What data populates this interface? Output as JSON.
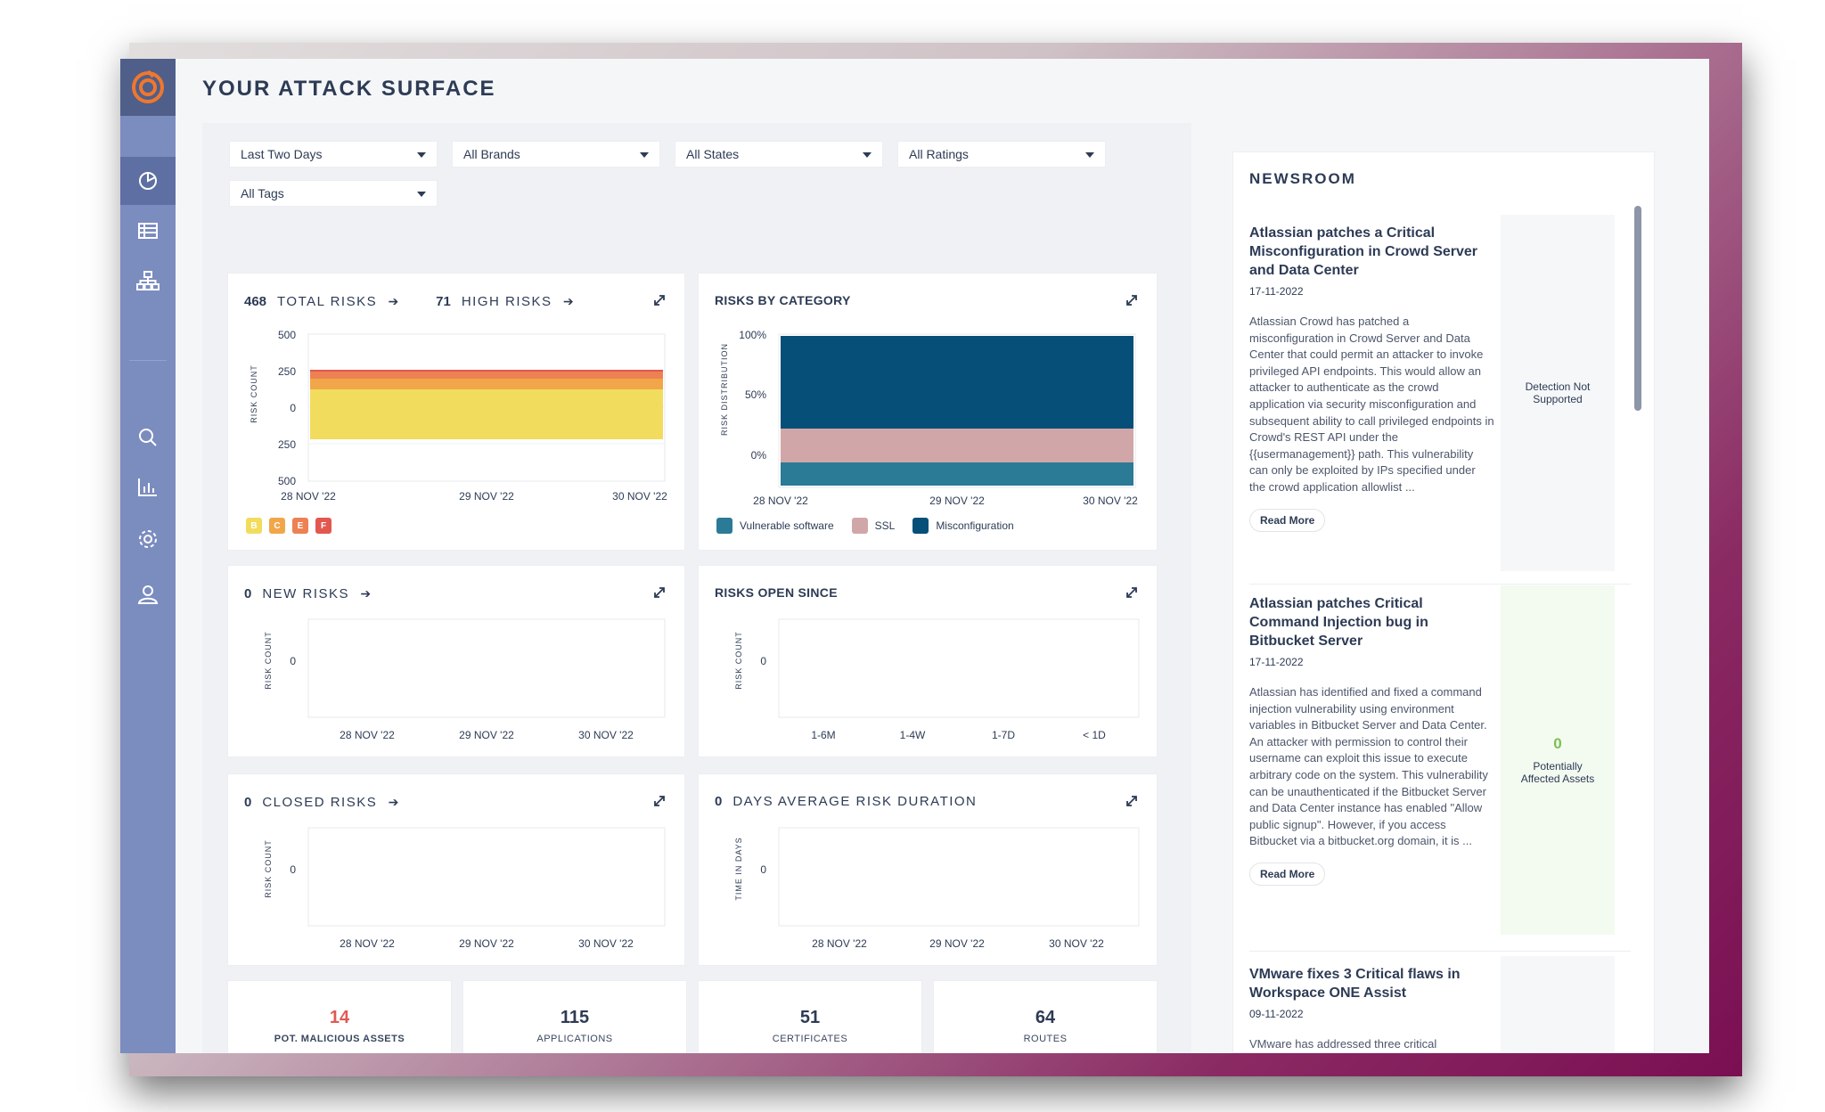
{
  "page": {
    "title": "YOUR ATTACK SURFACE"
  },
  "sidebar": {
    "items": [
      {
        "name": "dashboard",
        "icon": "pie-chart-icon",
        "active": true
      },
      {
        "name": "assets",
        "icon": "table-icon"
      },
      {
        "name": "hierarchy",
        "icon": "sitemap-icon"
      },
      {
        "name": "search",
        "icon": "search-icon"
      },
      {
        "name": "reports",
        "icon": "bar-chart-icon"
      },
      {
        "name": "settings",
        "icon": "gear-icon"
      },
      {
        "name": "account",
        "icon": "user-icon"
      }
    ]
  },
  "filters": {
    "period": "Last Two Days",
    "brands": "All Brands",
    "states": "All States",
    "ratings": "All Ratings",
    "tags": "All Tags"
  },
  "risks_card": {
    "total_count": "468",
    "total_label": "TOTAL RISKS",
    "high_count": "71",
    "high_label": "HIGH RISKS",
    "ylabel": "RISK COUNT",
    "yticks": [
      "500",
      "250",
      "0",
      "250",
      "500"
    ],
    "xticks": [
      "28 NOV '22",
      "29 NOV '22",
      "30 NOV '22"
    ],
    "grades": [
      "B",
      "C",
      "E",
      "F"
    ]
  },
  "category_card": {
    "title": "RISKS BY CATEGORY",
    "ylabel": "RISK DISTRIBUTION",
    "yticks": [
      "100%",
      "50%",
      "0%"
    ],
    "xticks": [
      "28 NOV '22",
      "29 NOV '22",
      "30 NOV '22"
    ],
    "legend": [
      "Vulnerable software",
      "SSL",
      "Misconfiguration"
    ]
  },
  "new_risks_card": {
    "count": "0",
    "label": "NEW RISKS",
    "ylabel": "RISK COUNT",
    "ytick": "0",
    "xticks": [
      "28 NOV '22",
      "29 NOV '22",
      "30 NOV '22"
    ]
  },
  "open_since_card": {
    "title": "RISKS OPEN SINCE",
    "ylabel": "RISK COUNT",
    "ytick": "0",
    "xticks": [
      "1-6M",
      "1-4W",
      "1-7D",
      "< 1D"
    ]
  },
  "closed_risks_card": {
    "count": "0",
    "label": "CLOSED RISKS",
    "ylabel": "RISK COUNT",
    "ytick": "0",
    "xticks": [
      "28 NOV '22",
      "29 NOV '22",
      "30 NOV '22"
    ]
  },
  "duration_card": {
    "count": "0",
    "label": "DAYS AVERAGE RISK DURATION",
    "ylabel": "TIME IN DAYS",
    "ytick": "0",
    "xticks": [
      "28 NOV '22",
      "29 NOV '22",
      "30 NOV '22"
    ]
  },
  "stats": [
    {
      "value": "14",
      "label": "POT. MALICIOUS ASSETS"
    },
    {
      "value": "115",
      "label": "APPLICATIONS"
    },
    {
      "value": "51",
      "label": "CERTIFICATES"
    },
    {
      "value": "64",
      "label": "ROUTES"
    }
  ],
  "newsroom": {
    "title": "NEWSROOM",
    "read_more": "Read More",
    "items": [
      {
        "headline": "Atlassian patches a Critical Misconfiguration in Crowd Server and Data Center",
        "date": "17-11-2022",
        "body": "Atlassian Crowd has patched a misconfiguration in Crowd Server and Data Center that could permit an attacker to invoke privileged API endpoints. This would allow an attacker to authenticate as the crowd application via security misconfiguration and subsequent ability to call privileged endpoints in Crowd's REST API under the {{usermanagement}} path. This vulnerability can only be exploited by IPs specified under the crowd application allowlist ...",
        "side_text": "Detection Not Supported"
      },
      {
        "headline": "Atlassian patches Critical Command Injection bug in Bitbucket Server",
        "date": "17-11-2022",
        "body": "Atlassian has identified and fixed a command injection vulnerability using environment variables in Bitbucket Server and Data Center. An attacker with permission to control their username can exploit this issue to execute arbitrary code on the system. This vulnerability can be unauthenticated if the Bitbucket Server and Data Center instance has enabled \"Allow public signup\". However, if you access Bitbucket via a bitbucket.org domain, it is ...",
        "side_count": "0",
        "side_text": "Potentially Affected Assets"
      },
      {
        "headline": "VMware fixes 3 Critical flaws in Workspace ONE Assist",
        "date": "09-11-2022",
        "body": "VMware has addressed three critical"
      }
    ]
  },
  "colors": {
    "sidebar": "#7b8cbf",
    "title": "#2d3b55",
    "grade_b": "#f2dc5d",
    "grade_c": "#f2a64a",
    "grade_e": "#ed8153",
    "grade_f": "#e2574f",
    "vulnerable_software": "#2b7a96",
    "ssl": "#d1a6a8",
    "misconfiguration": "#064f78",
    "malicious": "#e05a55"
  }
}
